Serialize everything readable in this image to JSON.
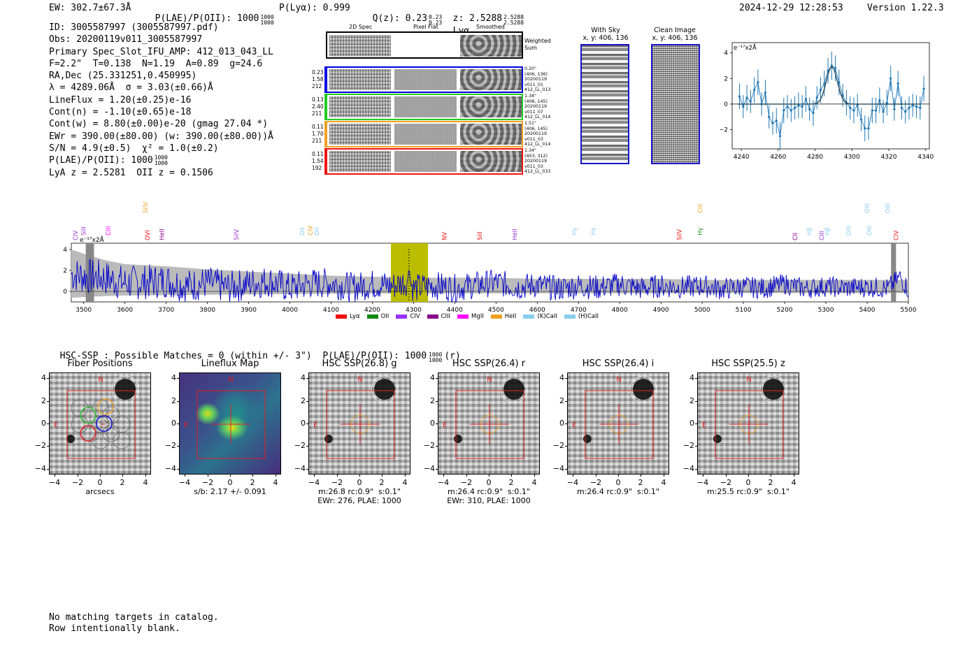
{
  "header": {
    "ew": "EW: 302.7±67.3Å",
    "plae_label": "P(LAE)/P(OII): 1000",
    "plae_hi": "1000",
    "plae_lo": "1000",
    "plya": "P(Lyα): 0.999",
    "qz_label": "Q(z): 0.23",
    "qz_hi": "0.23",
    "qz_lo": "0.23",
    "z_label": "z: 2.5288",
    "z_hi": "2.5288",
    "z_lo": "2.5288",
    "z_line": "Lyα",
    "timestamp": "2024-12-29 12:28:53",
    "version": "Version 1.22.3"
  },
  "info": {
    "lines": [
      "ID: 3005587997 (3005587997.pdf)",
      "Obs: 20200119v011_3005587997",
      "Primary Spec_Slot_IFU_AMP: 412_013_043_LL",
      "F=2.2\"  T=0.138  N=1.19  A=0.89  g=24.6",
      "RA,Dec (25.331251,0.450995)",
      "λ = 4289.06Å  σ = 3.03(±0.66)Å",
      "LineFlux = 1.20(±0.25)e-16",
      "Cont(n) = -1.10(±0.65)e-18",
      "Cont(w) = 8.80(±0.00)e-20 (gmag 27.04 *)",
      "EWr = 390.00(±80.00) (w: 390.00(±80.00))Å",
      "S/N = 4.9(±0.5)  χ² = 1.0(±0.2)",
      "P(LAE)/P(OII): 1000",
      "LyA z = 2.5281  OII z = 0.1506"
    ],
    "plae_hi": "1000",
    "plae_lo": "1000"
  },
  "spec2d": {
    "col_titles": [
      "2D Spec",
      "Pixel Flat",
      "Smoothed"
    ],
    "weighted_label": "Weighted\nSum",
    "rows": [
      {
        "color": "#0000dd",
        "left": [
          "0.23",
          "1.58",
          "212"
        ],
        "right": [
          "0.20\"",
          "(406, 136)",
          "20200119",
          "v011_01",
          "412_LL_013"
        ]
      },
      {
        "color": "#22cc22",
        "left": [
          "0.13",
          "2.40",
          "211"
        ],
        "right": [
          "1.34\"",
          "(406, 145)",
          "20200119",
          "v011_07",
          "412_LL_014"
        ]
      },
      {
        "color": "#f0a020",
        "left": [
          "0.11",
          "1.70",
          "211"
        ],
        "right": [
          "1.51\"",
          "(406, 145)",
          "20200119",
          "v011_03",
          "412_LL_014"
        ]
      },
      {
        "color": "#ee1111",
        "left": [
          "0.11",
          "1.54",
          "192"
        ],
        "right": [
          "1.34\"",
          "(403, 312)",
          "20200119",
          "v011_03",
          "412_LL_033"
        ]
      }
    ]
  },
  "sky_panel": {
    "title": "With Sky",
    "coords": "x, y: 406, 136"
  },
  "clean_panel": {
    "title": "Clean Image",
    "coords": "x, y: 406, 136"
  },
  "line_fit": {
    "ylabel": "e⁻¹⁷x2Å",
    "x_ticks": [
      "4240",
      "4260",
      "4280",
      "4300",
      "4320",
      "4340"
    ],
    "y_ticks": [
      "4",
      "2",
      "0",
      "−2"
    ]
  },
  "spectrum": {
    "ylabel": "e⁻¹⁷x2Å",
    "x_ticks": [
      "3500",
      "3600",
      "3700",
      "3800",
      "3900",
      "4000",
      "4100",
      "4200",
      "4300",
      "4400",
      "4500",
      "4600",
      "4700",
      "4800",
      "4900",
      "5000",
      "5100",
      "5200",
      "5300",
      "5400",
      "5500"
    ],
    "y_ticks": [
      "4",
      "2",
      "0"
    ],
    "lines": [
      {
        "label": "CIV",
        "color": "#9933cc",
        "wl": 3480,
        "tier": 0
      },
      {
        "label": "SiII",
        "color": "#9933cc",
        "wl": 3500,
        "tier": 1
      },
      {
        "label": "CIII",
        "color": "#ff00ff",
        "wl": 3560,
        "tier": 1
      },
      {
        "label": "SiIV",
        "color": "#f0a020",
        "wl": 3650,
        "tier": 2
      },
      {
        "label": "OVI",
        "color": "#ee1111",
        "wl": 3655,
        "tier": 0
      },
      {
        "label": "HeII",
        "color": "#880088",
        "wl": 3690,
        "tier": 0
      },
      {
        "label": "SiIV",
        "color": "#9933cc",
        "wl": 3870,
        "tier": 0
      },
      {
        "label": "OII",
        "color": "#88ccee",
        "wl": 4030,
        "tier": 1
      },
      {
        "label": "CIV",
        "color": "#f0a020",
        "wl": 4050,
        "tier": 1
      },
      {
        "label": "OII",
        "color": "#88ccee",
        "wl": 4065,
        "tier": 1
      },
      {
        "label": "NV",
        "color": "#ee1111",
        "wl": 4375,
        "tier": 0
      },
      {
        "label": "SiII",
        "color": "#ee1111",
        "wl": 4460,
        "tier": 0
      },
      {
        "label": "HeII",
        "color": "#9933cc",
        "wl": 4545,
        "tier": 0
      },
      {
        "label": "Hγ",
        "color": "#88ccee",
        "wl": 4690,
        "tier": 1
      },
      {
        "label": "Hγ",
        "color": "#88ccee",
        "wl": 4735,
        "tier": 1
      },
      {
        "label": "SiIV",
        "color": "#ee1111",
        "wl": 4945,
        "tier": 0
      },
      {
        "label": "CIII",
        "color": "#f0a020",
        "wl": 4995,
        "tier": 2
      },
      {
        "label": "Hγ",
        "color": "#118811",
        "wl": 4995,
        "tier": 1
      },
      {
        "label": "CII",
        "color": "#880088",
        "wl": 5225,
        "tier": 0
      },
      {
        "label": "Hβ",
        "color": "#88ccee",
        "wl": 5260,
        "tier": 1
      },
      {
        "label": "CIII",
        "color": "#9933cc",
        "wl": 5290,
        "tier": 0
      },
      {
        "label": "Hβ",
        "color": "#88ccee",
        "wl": 5303,
        "tier": 1
      },
      {
        "label": "OIII",
        "color": "#88ccee",
        "wl": 5355,
        "tier": 1
      },
      {
        "label": "OIII",
        "color": "#88ccee",
        "wl": 5400,
        "tier": 2
      },
      {
        "label": "OIII",
        "color": "#88ccee",
        "wl": 5405,
        "tier": 1
      },
      {
        "label": "OIII",
        "color": "#88ccee",
        "wl": 5450,
        "tier": 2
      },
      {
        "label": "CIV",
        "color": "#ee1111",
        "wl": 5470,
        "tier": 0
      }
    ],
    "legend": [
      {
        "label": "Lyα",
        "color": "#ee1111"
      },
      {
        "label": "OII",
        "color": "#118811"
      },
      {
        "label": "CIV",
        "color": "#9933ff"
      },
      {
        "label": "CIII",
        "color": "#880088"
      },
      {
        "label": "MgII",
        "color": "#ff00ff"
      },
      {
        "label": "HeII",
        "color": "#f0a020"
      },
      {
        "label": "(K)CaII",
        "color": "#88ccee"
      },
      {
        "label": "(H)CaII",
        "color": "#88ccee"
      }
    ]
  },
  "hsc": {
    "summary": "HSC-SSP : Possible Matches = 0 (within +/- 3\")  P(LAE)/P(OII): 1000",
    "summary_hi": "1000",
    "summary_lo": "1000",
    "summary_suffix": "(r)",
    "panels": [
      {
        "title": "Fiber Positions",
        "caption1": "arcsecs",
        "caption2": ""
      },
      {
        "title": "Lineflux Map",
        "caption1": "s/b: 2.17 +/- 0.091",
        "caption2": ""
      },
      {
        "title": "HSC SSP(26.8) g",
        "caption1": "m:26.8 rc:0.9\"  s:0.1\"",
        "caption2": "EWr: 276, PLAE: 1000"
      },
      {
        "title": "HSC SSP(26.4) r",
        "caption1": "m:26.4 rc:0.9\"  s:0.1\"",
        "caption2": "EWr: 310, PLAE: 1000"
      },
      {
        "title": "HSC SSP(26.4) i",
        "caption1": "m:26.4 rc:0.9\"  s:0.1\"",
        "caption2": ""
      },
      {
        "title": "HSC SSP(25.5) z",
        "caption1": "m:25.5 rc:0.9\"  s:0.1\"",
        "caption2": ""
      }
    ],
    "y_ticks": [
      "4",
      "2",
      "0",
      "−2",
      "−4"
    ],
    "x_ticks": [
      "−4",
      "−2",
      "0",
      "2",
      "4"
    ],
    "north": "N",
    "east": "E"
  },
  "footer": {
    "line1": "No matching targets in catalog.",
    "line2": "Row intentionally blank."
  },
  "chart_data": [
    {
      "type": "line",
      "title": "",
      "xlabel": "",
      "ylabel": "e⁻¹⁷x2Å",
      "xlim": [
        4235,
        4342
      ],
      "ylim": [
        -3.5,
        4.8
      ],
      "series": [
        {
          "name": "data",
          "style": "errorbar",
          "x": [
            4239,
            4241,
            4243,
            4245,
            4247,
            4249,
            4251,
            4253,
            4255,
            4257,
            4259,
            4261,
            4263,
            4265,
            4267,
            4269,
            4271,
            4273,
            4275,
            4277,
            4279,
            4281,
            4283,
            4285,
            4287,
            4289,
            4291,
            4293,
            4295,
            4297,
            4299,
            4301,
            4303,
            4305,
            4307,
            4309,
            4311,
            4313,
            4315,
            4317,
            4319,
            4321,
            4323,
            4325,
            4327,
            4329,
            4331,
            4333,
            4335,
            4337,
            4339
          ],
          "y": [
            0.6,
            -0.2,
            0.5,
            0.2,
            1.1,
            1.7,
            0.0,
            0.9,
            -1.0,
            -1.5,
            -1.3,
            -2.5,
            -0.5,
            -0.2,
            -0.5,
            -0.3,
            -0.1,
            -0.2,
            0.4,
            -0.4,
            -0.7,
            0.5,
            1.1,
            1.6,
            2.6,
            3.0,
            2.8,
            1.7,
            0.7,
            0.1,
            -0.3,
            -0.5,
            -0.1,
            -1.2,
            -1.9,
            -1.9,
            -0.5,
            -0.5,
            0.3,
            -0.6,
            0.1,
            2.0,
            -0.4,
            1.6,
            -0.3,
            -0.6,
            -0.3,
            -0.1,
            -0.2,
            -0.3,
            1.2
          ],
          "err": [
            1.0,
            0.9,
            1.0,
            0.9,
            1.0,
            1.0,
            0.9,
            1.0,
            0.9,
            0.9,
            1.0,
            1.1,
            1.0,
            0.9,
            0.9,
            0.9,
            1.0,
            0.9,
            1.0,
            0.9,
            1.0,
            0.9,
            1.0,
            1.0,
            1.0,
            1.1,
            1.0,
            1.0,
            0.9,
            1.0,
            0.9,
            1.0,
            0.9,
            0.9,
            1.0,
            0.9,
            1.0,
            1.0,
            1.0,
            0.9,
            1.0,
            1.0,
            0.9,
            1.0,
            0.9,
            0.9,
            0.9,
            0.9,
            0.9,
            0.9,
            1.0
          ]
        },
        {
          "name": "gaussian fit",
          "model": {
            "amplitude": 2.9,
            "center": 4289.06,
            "sigma": 3.03
          }
        }
      ]
    },
    {
      "type": "line",
      "title": "",
      "ylabel": "e⁻¹⁷x2Å",
      "xlim": [
        3470,
        5500
      ],
      "ylim": [
        -1.0,
        4.6
      ],
      "highlight_range": [
        4245,
        4335
      ],
      "markers": [
        4289
      ],
      "series": [
        {
          "name": "noise envelope",
          "style": "area",
          "color": "#bbbbbb",
          "x": [
            3470,
            3500,
            3550,
            3600,
            3650,
            3700,
            3800,
            3900,
            4000,
            4100,
            4200,
            4300,
            4400,
            4500,
            4600,
            4700,
            4800,
            4900,
            5000,
            5100,
            5200,
            5300,
            5400,
            5450,
            5500
          ],
          "y": [
            4.0,
            3.6,
            3.0,
            2.6,
            2.5,
            2.4,
            2.1,
            1.9,
            1.7,
            1.5,
            1.4,
            1.3,
            1.3,
            1.3,
            1.2,
            1.2,
            1.2,
            1.2,
            1.1,
            1.1,
            1.1,
            1.1,
            1.1,
            1.1,
            1.1
          ]
        },
        {
          "name": "flux",
          "style": "line",
          "color": "#0000cc",
          "x": [
            3470,
            3500,
            3550,
            3600,
            3650,
            3700,
            3750,
            3800,
            3850,
            3900,
            3950,
            4000,
            4050,
            4100,
            4150,
            4200,
            4250,
            4289,
            4300,
            4350,
            4400,
            4450,
            4500,
            4550,
            4600,
            4650,
            4700,
            4750,
            4800,
            4850,
            4900,
            4950,
            5000,
            5050,
            5100,
            5150,
            5200,
            5250,
            5300,
            5350,
            5400,
            5450,
            5480,
            5500
          ],
          "y": [
            3.9,
            3.4,
            2.9,
            1.5,
            1.8,
            2.2,
            0.8,
            1.6,
            0.3,
            1.4,
            2.1,
            0.2,
            1.5,
            1.6,
            0.4,
            1.3,
            0.9,
            2.3,
            0.2,
            1.0,
            0.3,
            1.1,
            1.9,
            0.6,
            1.2,
            0.1,
            1.0,
            0.5,
            1.4,
            0.3,
            1.0,
            0.6,
            1.0,
            0.1,
            0.8,
            0.4,
            1.6,
            0.3,
            0.9,
            0.5,
            0.8,
            0.3,
            3.5,
            0.0
          ]
        }
      ]
    }
  ]
}
